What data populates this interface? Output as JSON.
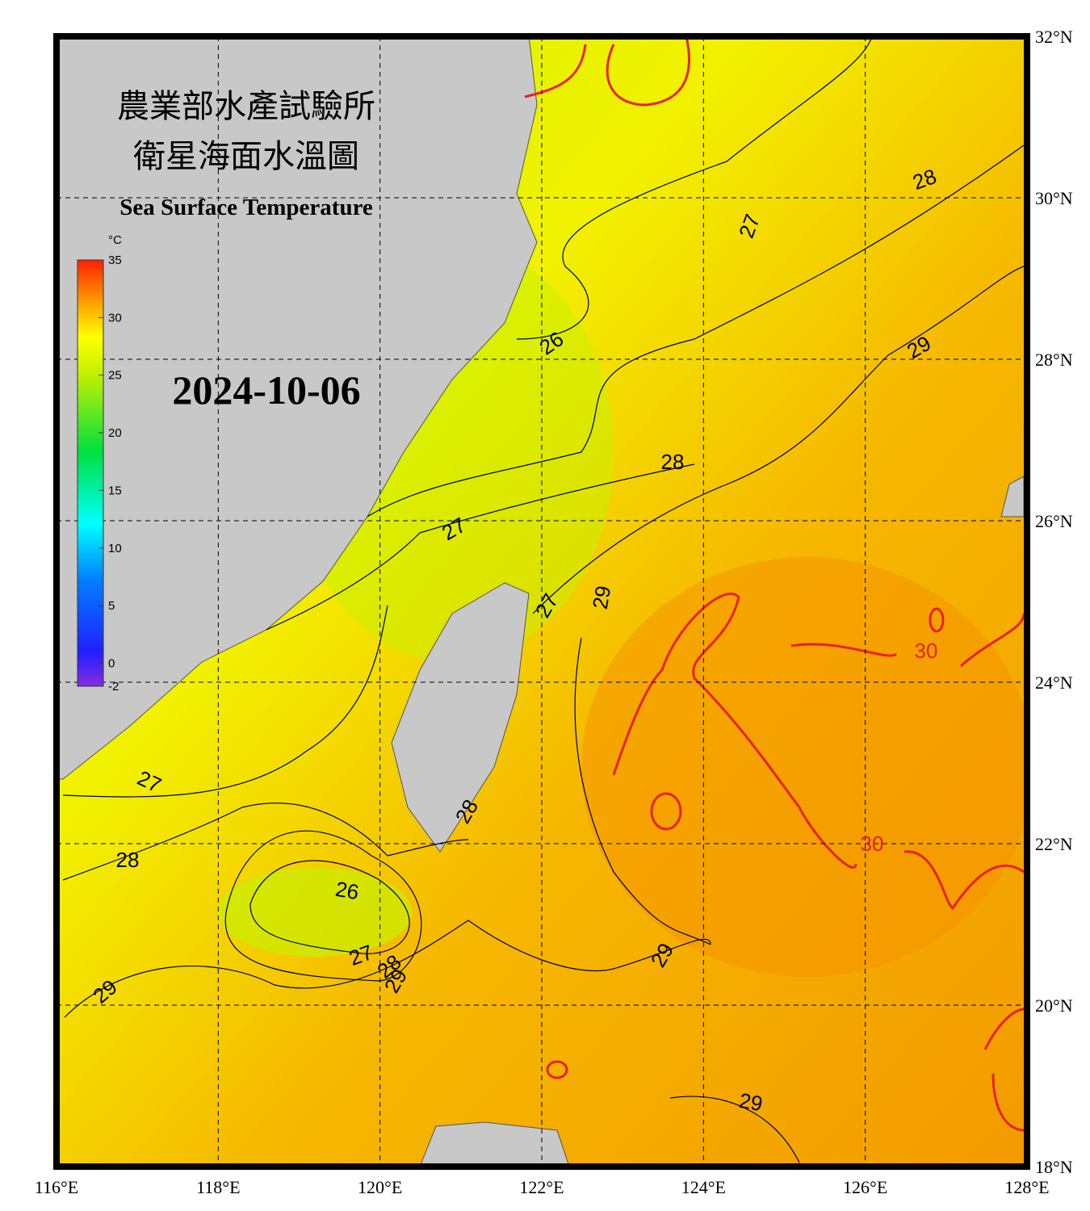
{
  "header": {
    "title_zh_1": "農業部水產試驗所",
    "title_zh_2": "衛星海面水溫圖",
    "title_en": "Sea Surface Temperature",
    "date": "2024-10-06"
  },
  "colorbar": {
    "unit": "°C",
    "range": [
      -2,
      35
    ],
    "ticks": [
      -2,
      0,
      5,
      10,
      15,
      20,
      25,
      30,
      35
    ]
  },
  "map": {
    "lon_range": [
      116,
      128
    ],
    "lat_range": [
      18,
      32
    ],
    "lon_ticks": [
      {
        "value": 116,
        "label": "116°E"
      },
      {
        "value": 118,
        "label": "118°E"
      },
      {
        "value": 120,
        "label": "120°E"
      },
      {
        "value": 122,
        "label": "122°E"
      },
      {
        "value": 124,
        "label": "124°E"
      },
      {
        "value": 126,
        "label": "126°E"
      },
      {
        "value": 128,
        "label": "128°E"
      }
    ],
    "lat_ticks": [
      {
        "value": 18,
        "label": "18°N"
      },
      {
        "value": 20,
        "label": "20°N"
      },
      {
        "value": 22,
        "label": "22°N"
      },
      {
        "value": 24,
        "label": "24°N"
      },
      {
        "value": 26,
        "label": "26°N"
      },
      {
        "value": 28,
        "label": "28°N"
      },
      {
        "value": 30,
        "label": "30°N"
      },
      {
        "value": 32,
        "label": "32°N"
      }
    ],
    "contour_labels": [
      26,
      27,
      28,
      29,
      28,
      27,
      29,
      27,
      30,
      27,
      28,
      30,
      28,
      26,
      27,
      28,
      29,
      29,
      29,
      29
    ],
    "contour_color": "#000000",
    "warm_contour_color": "#e8221b"
  }
}
